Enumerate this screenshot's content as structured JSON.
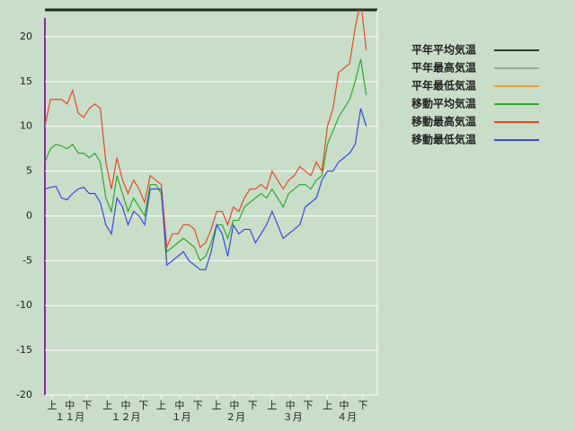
{
  "chart_data": {
    "type": "line",
    "x": [
      0,
      1,
      2,
      3,
      4,
      5,
      6,
      7,
      8,
      9,
      10,
      11,
      12,
      13,
      14,
      15,
      16,
      17,
      18,
      19,
      20,
      21,
      22,
      23,
      24,
      25,
      26,
      27,
      28,
      29,
      30,
      31,
      32,
      33,
      34,
      35,
      36,
      37,
      38,
      39,
      40,
      41,
      42,
      43,
      44,
      45,
      46,
      47,
      48,
      49,
      50,
      51,
      52,
      53,
      54,
      55,
      56,
      57,
      58
    ],
    "xlim": [
      0,
      60
    ],
    "xticks": [
      {
        "value": 1.3,
        "label": "上"
      },
      {
        "value": 4.5,
        "label": "中"
      },
      {
        "value": 7.6,
        "label": "下"
      },
      {
        "value": 11.3,
        "label": "上"
      },
      {
        "value": 14.6,
        "label": "中"
      },
      {
        "value": 17.8,
        "label": "下"
      },
      {
        "value": 21,
        "label": "上"
      },
      {
        "value": 24.3,
        "label": "中"
      },
      {
        "value": 27.6,
        "label": "下"
      },
      {
        "value": 31,
        "label": "上"
      },
      {
        "value": 34.2,
        "label": "中"
      },
      {
        "value": 37.5,
        "label": "下"
      },
      {
        "value": 41,
        "label": "上"
      },
      {
        "value": 44.3,
        "label": "中"
      },
      {
        "value": 47.5,
        "label": "下"
      },
      {
        "value": 51,
        "label": "上"
      },
      {
        "value": 54,
        "label": "中"
      },
      {
        "value": 57.4,
        "label": "下"
      }
    ],
    "month_ticks": [
      {
        "value": 4.5,
        "label": "１１月"
      },
      {
        "value": 14.6,
        "label": "１２月"
      },
      {
        "value": 24.6,
        "label": "１月"
      },
      {
        "value": 34.4,
        "label": "２月"
      },
      {
        "value": 44.7,
        "label": "３月"
      },
      {
        "value": 54.5,
        "label": "４月"
      }
    ],
    "ylim": [
      -20,
      23
    ],
    "yticks": [
      -20,
      -15,
      -10,
      -5,
      0,
      5,
      10,
      15,
      20
    ],
    "grid": true,
    "series": [
      {
        "name": "平年平均気温",
        "color": "#2e3a2e",
        "values": [
          null,
          null,
          null,
          null,
          null,
          null,
          null,
          null,
          null,
          null,
          null,
          null,
          null,
          null,
          null,
          null,
          null,
          null,
          null,
          null,
          null,
          null,
          null,
          null,
          null,
          null,
          null,
          null,
          null,
          null,
          null,
          null,
          null,
          null,
          null,
          null,
          null,
          null,
          null,
          null,
          null,
          null,
          null,
          null,
          null,
          null,
          null,
          null,
          null,
          null,
          null,
          null,
          null,
          null,
          null,
          null,
          null,
          null,
          null
        ]
      },
      {
        "name": "平年最高気温",
        "color": "#9aa89a",
        "values": [
          null,
          null,
          null,
          null,
          null,
          null,
          null,
          null,
          null,
          null,
          null,
          null,
          null,
          null,
          null,
          null,
          null,
          null,
          null,
          null,
          null,
          null,
          null,
          null,
          null,
          null,
          null,
          null,
          null,
          null,
          null,
          null,
          null,
          null,
          null,
          null,
          null,
          null,
          null,
          null,
          null,
          null,
          null,
          null,
          null,
          null,
          null,
          null,
          null,
          null,
          null,
          null,
          null,
          null,
          null,
          null,
          null,
          null,
          null
        ]
      },
      {
        "name": "平年最低気温",
        "color": "#e8a040",
        "values": [
          null,
          null,
          null,
          null,
          null,
          null,
          null,
          null,
          null,
          null,
          null,
          null,
          null,
          null,
          null,
          null,
          null,
          null,
          null,
          null,
          null,
          null,
          null,
          null,
          null,
          null,
          null,
          null,
          null,
          null,
          null,
          null,
          null,
          null,
          null,
          null,
          null,
          null,
          null,
          null,
          null,
          null,
          null,
          null,
          null,
          null,
          null,
          null,
          null,
          null,
          null,
          null,
          null,
          null,
          null,
          null,
          null,
          null,
          null
        ]
      },
      {
        "name": "移動平均気温",
        "color": "#30a830",
        "values": [
          6,
          7.5,
          8,
          7.8,
          7.5,
          8,
          7,
          7,
          6.5,
          7,
          6,
          2,
          0.5,
          4.5,
          2.5,
          0.5,
          2,
          1,
          0,
          3.5,
          3.5,
          2.5,
          -4,
          -3.5,
          -3,
          -2.5,
          -3,
          -3.5,
          -5,
          -4.5,
          -3,
          -1,
          -1,
          -2.5,
          -0.5,
          -0.5,
          1,
          1.5,
          2,
          2.5,
          2,
          3,
          2,
          1,
          2.5,
          3,
          3.5,
          3.5,
          3,
          4,
          4.5,
          8,
          9.5,
          11,
          12,
          13,
          15,
          17.5,
          13.5
        ]
      },
      {
        "name": "移動最高気温",
        "color": "#e84828",
        "values": [
          10,
          13,
          13,
          13,
          12.5,
          14,
          11.5,
          11,
          12,
          12.5,
          12,
          6,
          3,
          6.5,
          4,
          2.5,
          4,
          3,
          1.5,
          4.5,
          4,
          3.5,
          -3.5,
          -2,
          -2,
          -1,
          -1,
          -1.5,
          -3.5,
          -3,
          -1.5,
          0.5,
          0.5,
          -1,
          1,
          0.5,
          2,
          3,
          3,
          3.5,
          3,
          5,
          4,
          3,
          4,
          4.5,
          5.5,
          5,
          4.5,
          6,
          5,
          10,
          12,
          16,
          16.5,
          17,
          21,
          24,
          18.5
        ]
      },
      {
        "name": "移動最低気温",
        "color": "#3848e0",
        "values": [
          3,
          3.2,
          3.3,
          2,
          1.8,
          2.5,
          3,
          3.2,
          2.5,
          2.5,
          1.5,
          -1,
          -2,
          2,
          1,
          -1,
          0.5,
          0,
          -1,
          3,
          3,
          3,
          -5.5,
          -5,
          -4.5,
          -4,
          -5,
          -5.5,
          -6,
          -6,
          -4,
          -1,
          -2,
          -4.5,
          -1,
          -2,
          -1.5,
          -1.5,
          -3,
          -2,
          -1,
          0.5,
          -1,
          -2.5,
          -2,
          -1.5,
          -1,
          1,
          1.5,
          2,
          4,
          5,
          5,
          6,
          6.5,
          7,
          8,
          12,
          10
        ]
      }
    ]
  }
}
